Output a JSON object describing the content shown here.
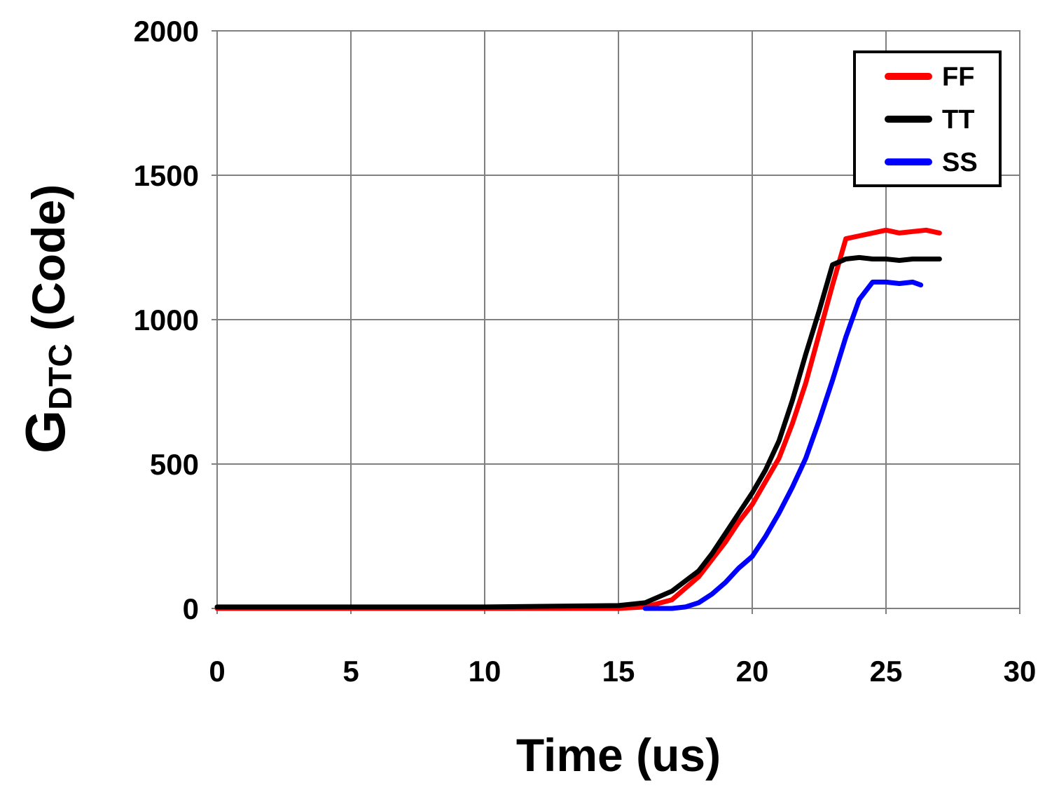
{
  "chart_data": {
    "type": "line",
    "xlabel": "Time (us)",
    "ylabel": {
      "main": "G",
      "subscript": "DTC",
      "rest": " (Code)"
    },
    "xlim": [
      0,
      30
    ],
    "ylim": [
      0,
      2000
    ],
    "xticks": [
      0,
      5,
      10,
      15,
      20,
      25,
      30
    ],
    "yticks": [
      0,
      500,
      1000,
      1500,
      2000
    ],
    "grid": true,
    "legend_position": "top-right",
    "series": [
      {
        "name": "FF",
        "color": "#ff0000",
        "points": [
          [
            0,
            0
          ],
          [
            5,
            0
          ],
          [
            10,
            0
          ],
          [
            15,
            0
          ],
          [
            16,
            5
          ],
          [
            17,
            30
          ],
          [
            18,
            110
          ],
          [
            18.5,
            170
          ],
          [
            19,
            230
          ],
          [
            19.5,
            300
          ],
          [
            20,
            360
          ],
          [
            20.5,
            440
          ],
          [
            21,
            520
          ],
          [
            21.5,
            640
          ],
          [
            22,
            780
          ],
          [
            22.5,
            950
          ],
          [
            23,
            1120
          ],
          [
            23.5,
            1280
          ],
          [
            24,
            1290
          ],
          [
            24.5,
            1300
          ],
          [
            25,
            1310
          ],
          [
            25.5,
            1300
          ],
          [
            26,
            1305
          ],
          [
            26.5,
            1310
          ],
          [
            27,
            1300
          ]
        ]
      },
      {
        "name": "TT",
        "color": "#000000",
        "points": [
          [
            0,
            5
          ],
          [
            5,
            5
          ],
          [
            10,
            5
          ],
          [
            15,
            10
          ],
          [
            16,
            20
          ],
          [
            17,
            60
          ],
          [
            18,
            130
          ],
          [
            18.5,
            190
          ],
          [
            19,
            260
          ],
          [
            19.5,
            330
          ],
          [
            20,
            400
          ],
          [
            20.5,
            480
          ],
          [
            21,
            580
          ],
          [
            21.5,
            720
          ],
          [
            22,
            880
          ],
          [
            22.5,
            1030
          ],
          [
            23,
            1190
          ],
          [
            23.5,
            1210
          ],
          [
            24,
            1215
          ],
          [
            24.5,
            1210
          ],
          [
            25,
            1210
          ],
          [
            25.5,
            1205
          ],
          [
            26,
            1210
          ],
          [
            26.5,
            1210
          ],
          [
            27,
            1210
          ]
        ]
      },
      {
        "name": "SS",
        "color": "#0000ff",
        "points": [
          [
            16,
            0
          ],
          [
            17,
            0
          ],
          [
            17.5,
            5
          ],
          [
            18,
            20
          ],
          [
            18.5,
            50
          ],
          [
            19,
            90
          ],
          [
            19.5,
            140
          ],
          [
            20,
            180
          ],
          [
            20.5,
            250
          ],
          [
            21,
            330
          ],
          [
            21.5,
            420
          ],
          [
            22,
            520
          ],
          [
            22.5,
            650
          ],
          [
            23,
            790
          ],
          [
            23.5,
            940
          ],
          [
            24,
            1070
          ],
          [
            24.5,
            1130
          ],
          [
            25,
            1130
          ],
          [
            25.5,
            1125
          ],
          [
            26,
            1130
          ],
          [
            26.3,
            1120
          ]
        ]
      }
    ]
  }
}
